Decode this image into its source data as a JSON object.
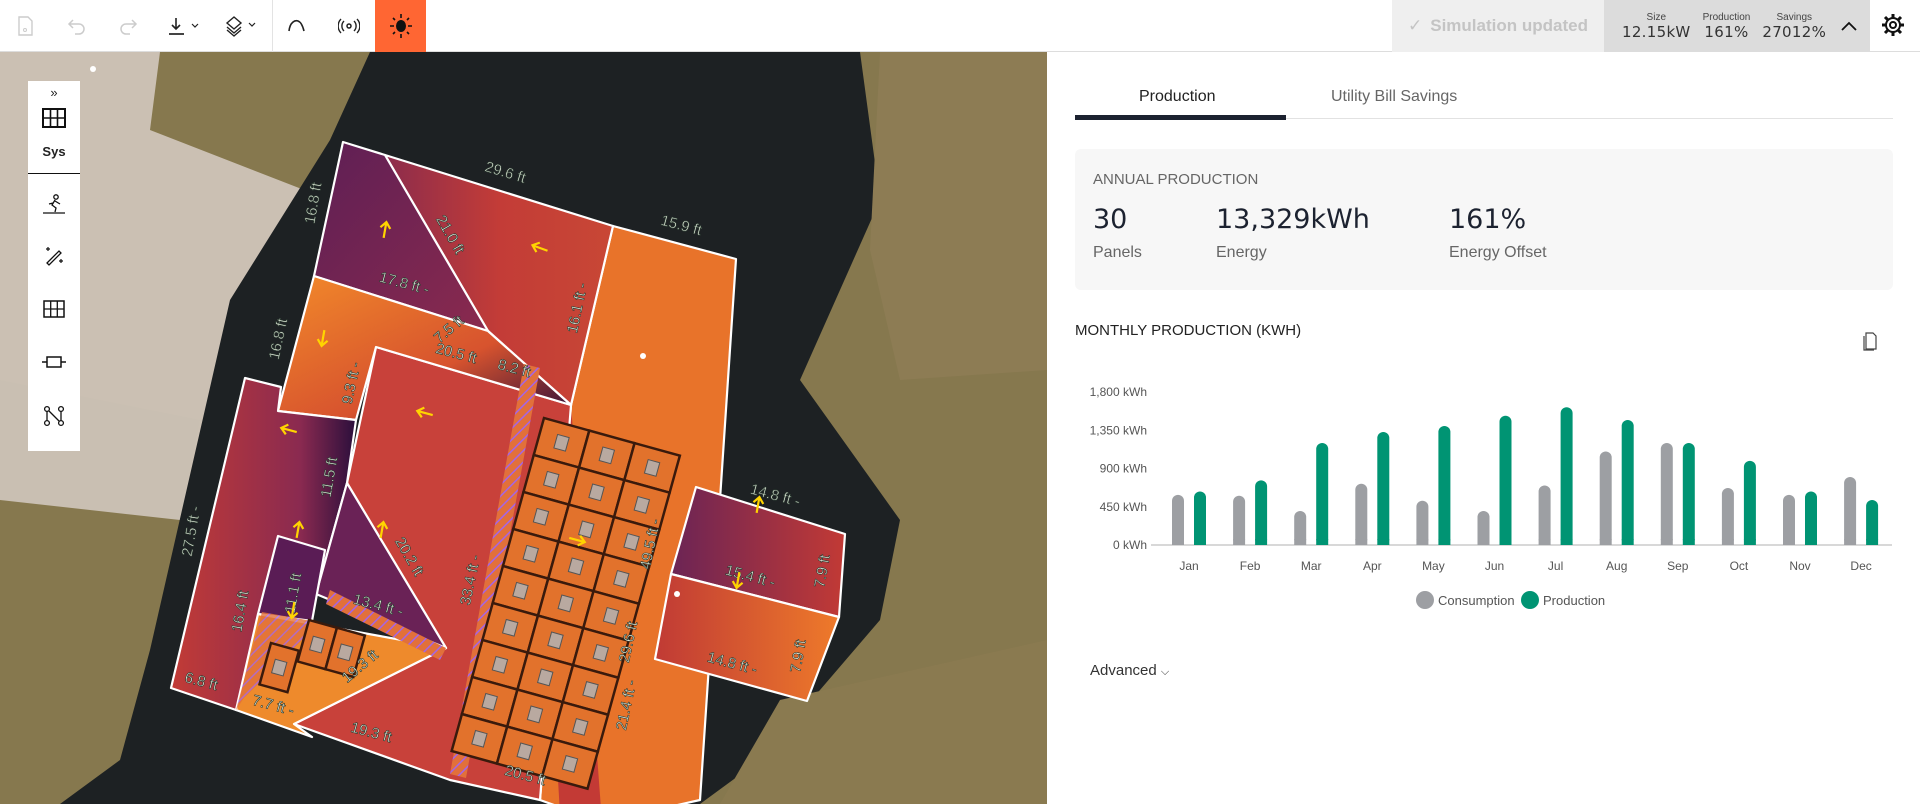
{
  "toolbar": {
    "icons": [
      "save-icon",
      "undo-icon",
      "redo-icon",
      "download-icon",
      "layers-icon",
      "arc-icon",
      "antenna-icon",
      "sun-icon"
    ],
    "active_color": "#ff6633",
    "simulation_status": "Simulation updated",
    "stats": [
      {
        "label": "Size",
        "value": "12.15kW"
      },
      {
        "label": "Production",
        "value": "161%"
      },
      {
        "label": "Savings",
        "value": "27012%"
      }
    ]
  },
  "left_tools": {
    "expand": "»",
    "sys_label": "Sys",
    "icons": [
      "grid-icon",
      "walker-icon",
      "magic-wand-icon",
      "table-grid-icon",
      "component-icon",
      "route-icon"
    ]
  },
  "map": {
    "labels": [
      "29.6 ft",
      "15.9 ft",
      "16.8 ft",
      "21.0 ft",
      "17.8 ft -",
      "16.1 ft -",
      "7.5 ft",
      "20.5 ft",
      "8.2 ft",
      "16.8 ft",
      "9.3 ft -",
      "11.5 ft",
      "27.5 ft -",
      "20.2 ft",
      "33.4 ft -",
      "49.5 ft -",
      "14.8 ft -",
      "15.4 ft -",
      "7.9 ft",
      "13.4 ft -",
      "11.1 ft",
      "16.4 ft",
      "29.6 ft",
      "19.3 ft",
      "14.8 ft -",
      "7.9 ft",
      "6.8 ft",
      "7.7 ft -",
      "21.4 ft -",
      "19.3 ft",
      "20.5 ft"
    ],
    "panel_count": 30
  },
  "panel": {
    "tabs": [
      {
        "label": "Production",
        "active": true
      },
      {
        "label": "Utility Bill Savings",
        "active": false
      }
    ],
    "annual": {
      "title": "ANNUAL PRODUCTION",
      "panels": {
        "value": "30",
        "label": "Panels"
      },
      "energy": {
        "value": "13,329kWh",
        "label": "Energy"
      },
      "offset": {
        "value": "161%",
        "label": "Energy Offset"
      }
    },
    "monthly_title": "MONTHLY PRODUCTION (KWH)",
    "advanced": "Advanced"
  },
  "chart_data": {
    "type": "bar",
    "title": "MONTHLY PRODUCTION (KWH)",
    "categories": [
      "Jan",
      "Feb",
      "Mar",
      "Apr",
      "May",
      "Jun",
      "Jul",
      "Aug",
      "Sep",
      "Oct",
      "Nov",
      "Dec"
    ],
    "series": [
      {
        "name": "Consumption",
        "color": "#9d9fa3",
        "values": [
          590,
          580,
          400,
          720,
          520,
          400,
          700,
          1100,
          1200,
          670,
          590,
          800
        ]
      },
      {
        "name": "Production",
        "color": "#009473",
        "values": [
          630,
          760,
          1200,
          1330,
          1400,
          1520,
          1620,
          1470,
          1200,
          990,
          630,
          530
        ]
      }
    ],
    "yticks": [
      "0 kWh",
      "450 kWh",
      "900 kWh",
      "1,350 kWh",
      "1,800 kWh"
    ],
    "ytick_values": [
      0,
      450,
      900,
      1350,
      1800
    ],
    "ylim": [
      0,
      1800
    ],
    "grid": false,
    "legend": "bottom"
  }
}
